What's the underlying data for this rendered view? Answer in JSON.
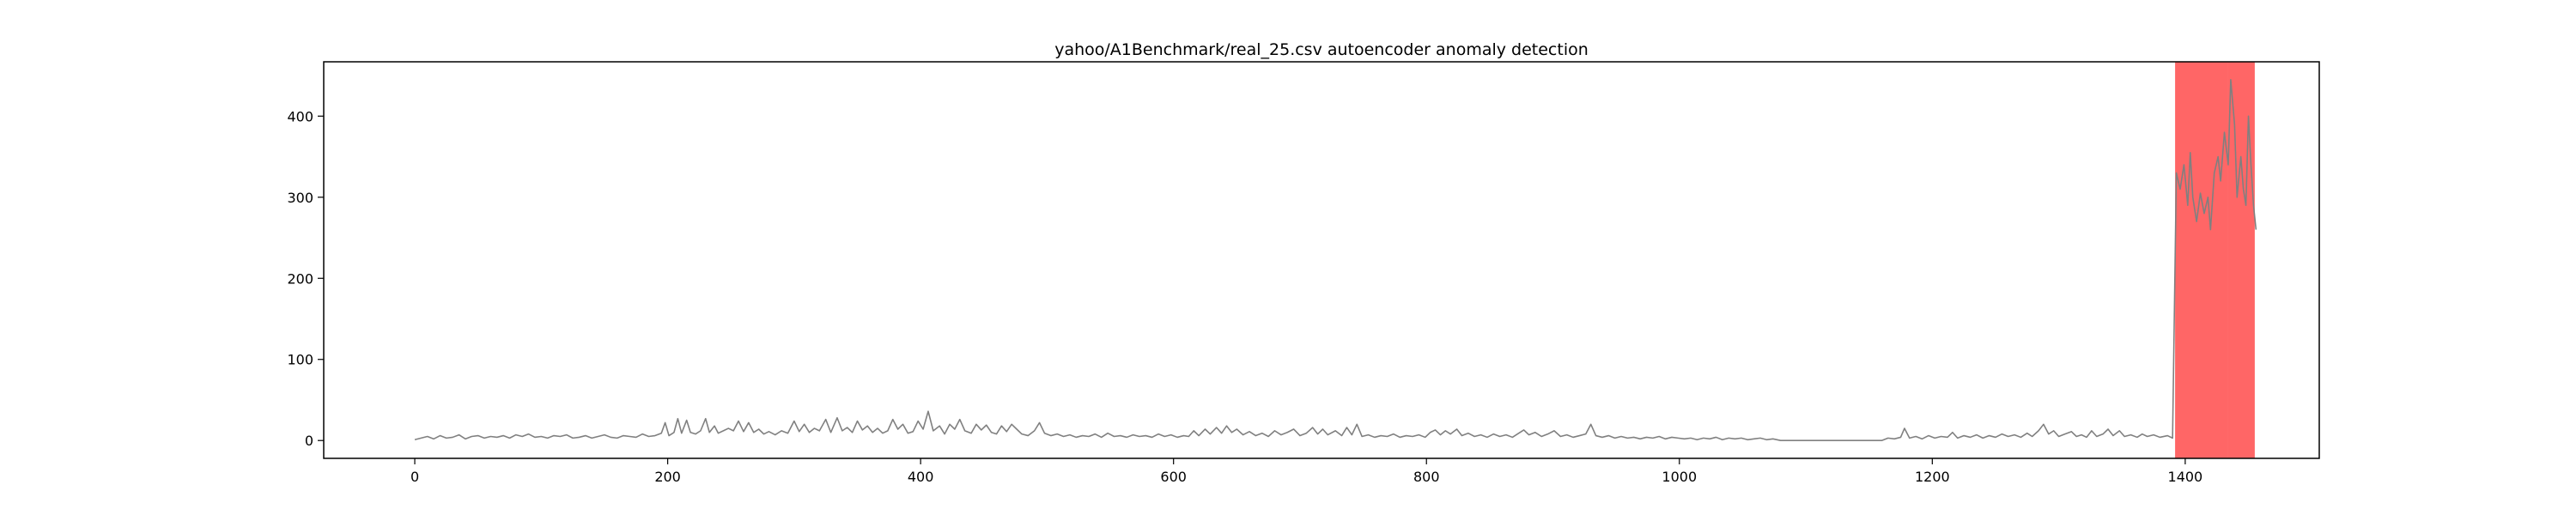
{
  "chart_data": {
    "type": "line",
    "title": "yahoo/A1Benchmark/real_25.csv autoencoder anomaly detection",
    "xlabel": "",
    "ylabel": "",
    "xlim": [
      -72,
      1506
    ],
    "ylim": [
      -22,
      467
    ],
    "x_ticks": [
      0,
      200,
      400,
      600,
      800,
      1000,
      1200,
      1400
    ],
    "y_ticks": [
      0,
      100,
      200,
      300,
      400
    ],
    "grid": false,
    "line_color": "#808080",
    "anomaly_color": "#ff0000",
    "anomaly_opacity": 0.6,
    "series": [
      {
        "points": [
          [
            0,
            1
          ],
          [
            5,
            3
          ],
          [
            10,
            5
          ],
          [
            15,
            2
          ],
          [
            20,
            6
          ],
          [
            25,
            3
          ],
          [
            30,
            4
          ],
          [
            35,
            7
          ],
          [
            40,
            2
          ],
          [
            45,
            5
          ],
          [
            50,
            6
          ],
          [
            55,
            3
          ],
          [
            60,
            5
          ],
          [
            65,
            4
          ],
          [
            70,
            6
          ],
          [
            75,
            3
          ],
          [
            80,
            7
          ],
          [
            85,
            5
          ],
          [
            90,
            8
          ],
          [
            95,
            4
          ],
          [
            100,
            5
          ],
          [
            105,
            3
          ],
          [
            110,
            6
          ],
          [
            115,
            5
          ],
          [
            120,
            7
          ],
          [
            125,
            3
          ],
          [
            130,
            4
          ],
          [
            135,
            6
          ],
          [
            140,
            3
          ],
          [
            145,
            5
          ],
          [
            150,
            7
          ],
          [
            155,
            4
          ],
          [
            160,
            3
          ],
          [
            165,
            6
          ],
          [
            170,
            5
          ],
          [
            175,
            4
          ],
          [
            180,
            8
          ],
          [
            185,
            5
          ],
          [
            190,
            6
          ],
          [
            195,
            9
          ],
          [
            198,
            22
          ],
          [
            201,
            6
          ],
          [
            205,
            10
          ],
          [
            208,
            27
          ],
          [
            211,
            9
          ],
          [
            215,
            25
          ],
          [
            218,
            10
          ],
          [
            222,
            8
          ],
          [
            226,
            12
          ],
          [
            230,
            27
          ],
          [
            233,
            10
          ],
          [
            237,
            18
          ],
          [
            240,
            9
          ],
          [
            244,
            12
          ],
          [
            248,
            15
          ],
          [
            252,
            12
          ],
          [
            256,
            24
          ],
          [
            260,
            11
          ],
          [
            264,
            22
          ],
          [
            268,
            10
          ],
          [
            272,
            14
          ],
          [
            276,
            8
          ],
          [
            280,
            11
          ],
          [
            285,
            7
          ],
          [
            290,
            12
          ],
          [
            295,
            9
          ],
          [
            300,
            24
          ],
          [
            304,
            11
          ],
          [
            308,
            20
          ],
          [
            312,
            10
          ],
          [
            316,
            15
          ],
          [
            320,
            12
          ],
          [
            325,
            26
          ],
          [
            329,
            10
          ],
          [
            334,
            28
          ],
          [
            338,
            12
          ],
          [
            342,
            16
          ],
          [
            346,
            10
          ],
          [
            350,
            24
          ],
          [
            354,
            13
          ],
          [
            358,
            18
          ],
          [
            362,
            10
          ],
          [
            366,
            15
          ],
          [
            370,
            9
          ],
          [
            374,
            12
          ],
          [
            378,
            26
          ],
          [
            382,
            14
          ],
          [
            386,
            20
          ],
          [
            390,
            9
          ],
          [
            394,
            11
          ],
          [
            398,
            24
          ],
          [
            402,
            14
          ],
          [
            406,
            36
          ],
          [
            410,
            12
          ],
          [
            415,
            18
          ],
          [
            419,
            8
          ],
          [
            423,
            20
          ],
          [
            427,
            14
          ],
          [
            431,
            26
          ],
          [
            435,
            12
          ],
          [
            440,
            9
          ],
          [
            444,
            20
          ],
          [
            448,
            13
          ],
          [
            452,
            19
          ],
          [
            456,
            10
          ],
          [
            460,
            8
          ],
          [
            464,
            18
          ],
          [
            468,
            11
          ],
          [
            472,
            20
          ],
          [
            476,
            14
          ],
          [
            480,
            8
          ],
          [
            485,
            6
          ],
          [
            490,
            12
          ],
          [
            494,
            22
          ],
          [
            498,
            9
          ],
          [
            503,
            6
          ],
          [
            508,
            8
          ],
          [
            513,
            5
          ],
          [
            518,
            7
          ],
          [
            523,
            4
          ],
          [
            528,
            6
          ],
          [
            533,
            5
          ],
          [
            538,
            8
          ],
          [
            543,
            4
          ],
          [
            548,
            9
          ],
          [
            553,
            5
          ],
          [
            558,
            6
          ],
          [
            563,
            4
          ],
          [
            568,
            7
          ],
          [
            573,
            5
          ],
          [
            578,
            6
          ],
          [
            583,
            4
          ],
          [
            588,
            8
          ],
          [
            593,
            5
          ],
          [
            598,
            7
          ],
          [
            603,
            4
          ],
          [
            608,
            6
          ],
          [
            612,
            5
          ],
          [
            616,
            12
          ],
          [
            620,
            6
          ],
          [
            625,
            14
          ],
          [
            629,
            8
          ],
          [
            634,
            16
          ],
          [
            638,
            9
          ],
          [
            642,
            18
          ],
          [
            646,
            10
          ],
          [
            650,
            14
          ],
          [
            655,
            7
          ],
          [
            660,
            11
          ],
          [
            665,
            6
          ],
          [
            670,
            9
          ],
          [
            675,
            5
          ],
          [
            680,
            12
          ],
          [
            685,
            7
          ],
          [
            690,
            10
          ],
          [
            695,
            14
          ],
          [
            700,
            6
          ],
          [
            705,
            9
          ],
          [
            710,
            16
          ],
          [
            714,
            8
          ],
          [
            718,
            14
          ],
          [
            722,
            7
          ],
          [
            728,
            12
          ],
          [
            733,
            6
          ],
          [
            737,
            16
          ],
          [
            741,
            7
          ],
          [
            745,
            20
          ],
          [
            749,
            5
          ],
          [
            754,
            7
          ],
          [
            759,
            4
          ],
          [
            764,
            6
          ],
          [
            769,
            5
          ],
          [
            774,
            8
          ],
          [
            779,
            4
          ],
          [
            784,
            6
          ],
          [
            789,
            5
          ],
          [
            794,
            7
          ],
          [
            799,
            4
          ],
          [
            803,
            10
          ],
          [
            807,
            13
          ],
          [
            811,
            7
          ],
          [
            815,
            12
          ],
          [
            819,
            8
          ],
          [
            824,
            14
          ],
          [
            828,
            6
          ],
          [
            833,
            9
          ],
          [
            838,
            5
          ],
          [
            843,
            7
          ],
          [
            848,
            4
          ],
          [
            853,
            8
          ],
          [
            858,
            5
          ],
          [
            863,
            7
          ],
          [
            868,
            4
          ],
          [
            873,
            9
          ],
          [
            877,
            13
          ],
          [
            881,
            7
          ],
          [
            886,
            10
          ],
          [
            891,
            5
          ],
          [
            896,
            8
          ],
          [
            901,
            12
          ],
          [
            906,
            5
          ],
          [
            911,
            7
          ],
          [
            916,
            4
          ],
          [
            921,
            6
          ],
          [
            926,
            8
          ],
          [
            930,
            20
          ],
          [
            934,
            6
          ],
          [
            939,
            4
          ],
          [
            944,
            6
          ],
          [
            949,
            3
          ],
          [
            954,
            5
          ],
          [
            959,
            3
          ],
          [
            964,
            4
          ],
          [
            969,
            2
          ],
          [
            974,
            4
          ],
          [
            979,
            3
          ],
          [
            984,
            5
          ],
          [
            989,
            2
          ],
          [
            994,
            4
          ],
          [
            999,
            3
          ],
          [
            1004,
            2
          ],
          [
            1009,
            3
          ],
          [
            1014,
            1
          ],
          [
            1019,
            3
          ],
          [
            1024,
            2
          ],
          [
            1029,
            4
          ],
          [
            1034,
            1
          ],
          [
            1039,
            3
          ],
          [
            1044,
            2
          ],
          [
            1049,
            3
          ],
          [
            1054,
            1
          ],
          [
            1059,
            2
          ],
          [
            1064,
            3
          ],
          [
            1069,
            1
          ],
          [
            1074,
            2
          ],
          [
            1080,
            0
          ],
          [
            1100,
            0
          ],
          [
            1130,
            0
          ],
          [
            1160,
            0
          ],
          [
            1165,
            3
          ],
          [
            1170,
            2
          ],
          [
            1175,
            4
          ],
          [
            1178,
            15
          ],
          [
            1182,
            3
          ],
          [
            1187,
            5
          ],
          [
            1192,
            2
          ],
          [
            1197,
            6
          ],
          [
            1202,
            3
          ],
          [
            1207,
            5
          ],
          [
            1212,
            4
          ],
          [
            1216,
            10
          ],
          [
            1220,
            3
          ],
          [
            1225,
            6
          ],
          [
            1230,
            4
          ],
          [
            1235,
            7
          ],
          [
            1240,
            3
          ],
          [
            1245,
            6
          ],
          [
            1250,
            4
          ],
          [
            1255,
            8
          ],
          [
            1260,
            5
          ],
          [
            1265,
            7
          ],
          [
            1270,
            4
          ],
          [
            1275,
            9
          ],
          [
            1279,
            5
          ],
          [
            1284,
            12
          ],
          [
            1288,
            20
          ],
          [
            1292,
            8
          ],
          [
            1296,
            12
          ],
          [
            1300,
            5
          ],
          [
            1305,
            8
          ],
          [
            1310,
            11
          ],
          [
            1314,
            5
          ],
          [
            1318,
            7
          ],
          [
            1322,
            4
          ],
          [
            1326,
            12
          ],
          [
            1330,
            5
          ],
          [
            1335,
            8
          ],
          [
            1339,
            14
          ],
          [
            1343,
            6
          ],
          [
            1348,
            12
          ],
          [
            1352,
            5
          ],
          [
            1357,
            7
          ],
          [
            1362,
            4
          ],
          [
            1366,
            8
          ],
          [
            1370,
            5
          ],
          [
            1375,
            7
          ],
          [
            1380,
            4
          ],
          [
            1386,
            6
          ],
          [
            1390,
            3
          ],
          [
            1393,
            330
          ],
          [
            1396,
            310
          ],
          [
            1399,
            340
          ],
          [
            1402,
            290
          ],
          [
            1404,
            355
          ],
          [
            1406,
            300
          ],
          [
            1409,
            270
          ],
          [
            1412,
            305
          ],
          [
            1415,
            280
          ],
          [
            1418,
            300
          ],
          [
            1420,
            260
          ],
          [
            1423,
            330
          ],
          [
            1426,
            350
          ],
          [
            1428,
            320
          ],
          [
            1431,
            380
          ],
          [
            1434,
            340
          ],
          [
            1436,
            445
          ],
          [
            1439,
            390
          ],
          [
            1441,
            300
          ],
          [
            1444,
            350
          ],
          [
            1446,
            310
          ],
          [
            1448,
            290
          ],
          [
            1450,
            400
          ],
          [
            1452,
            340
          ],
          [
            1454,
            290
          ],
          [
            1456,
            260
          ]
        ]
      }
    ],
    "anomaly_regions": [
      [
        1392,
        1434
      ],
      [
        1434,
        1455
      ]
    ]
  }
}
